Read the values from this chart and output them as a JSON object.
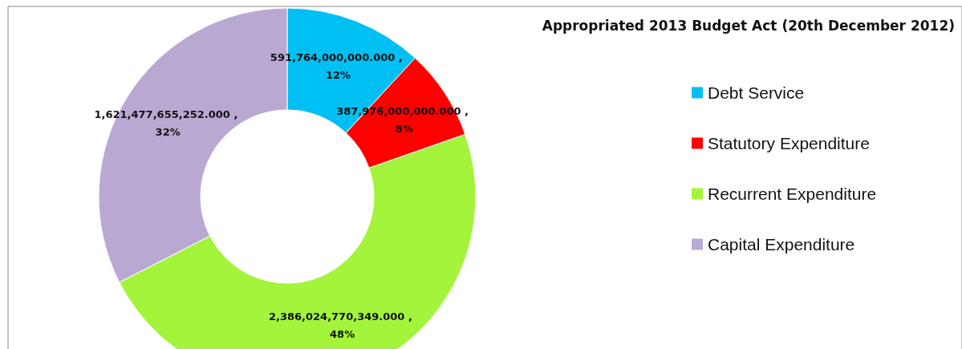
{
  "chart_data": {
    "type": "donut",
    "subtitle": "Appropriated 2013 Budget Act (20th December 2012)",
    "categories": [
      "Debt Service",
      "Statutory Expenditure",
      "Recurrent Expenditure",
      "Capital Expenditure"
    ],
    "values": [
      591764000000,
      387976000000,
      2386024770349,
      1621477655252
    ],
    "colors": [
      "#00bff3",
      "#ff0000",
      "#a3f43a",
      "#b9a9d2"
    ],
    "value_labels": [
      "591,764,000,000.000 , 12%",
      "387,976,000,000.000 , 8%",
      "2,386,024,770,349.000 , 48%",
      "1,621,477,655,252.000 , 32%"
    ],
    "legend": "right"
  }
}
